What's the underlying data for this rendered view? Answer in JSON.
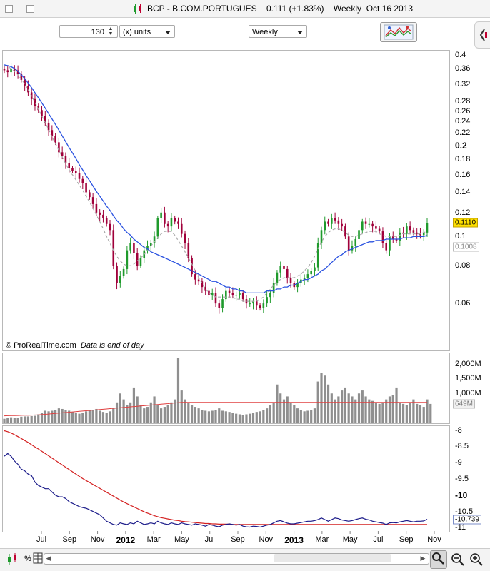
{
  "window": {
    "title": "BCP - B.COM.PORTUGUES",
    "price_change": "0.111 (+1.83%)",
    "period": "Weekly",
    "date": "Oct 16 2013"
  },
  "toolbar": {
    "units_value": "130",
    "units_label": "(x) units",
    "period_value": "Weekly"
  },
  "footer": {
    "source": "© ProRealTime.com",
    "note": "Data is end of day"
  },
  "icons": {
    "chart_tool": "chart-tool-icon",
    "side_toggle": "side-toggle-icon",
    "bottom": [
      "candlestick-icon",
      "hundred-percent-icon",
      "table-icon",
      "zoom-select-icon",
      "zoom-out-icon",
      "zoom-in-icon"
    ]
  },
  "colors": {
    "up_candle": "#1f9a2c",
    "down_candle": "#a0003a",
    "ma_fast": "#a8a8a8",
    "ma_slow": "#2a52e0",
    "volume_bar": "#8f8f8f",
    "volume_ma": "#e04040",
    "ind_line_1": "#1c1c8a",
    "ind_line_2": "#d42020",
    "price_tag": "#ffe000"
  },
  "chart_data": [
    {
      "type": "candlestick",
      "title": "BCP - B.COM.PORTUGUES",
      "period": "Weekly",
      "y_scale": "log",
      "ylim": [
        0.045,
        0.41
      ],
      "y_ticks": [
        "0.4",
        "0.36",
        "0.32",
        "0.28",
        "0.26",
        "0.24",
        "0.22",
        "0.2",
        "0.18",
        "0.16",
        "0.14",
        "0.12",
        "0.1",
        "0.08",
        "0.06"
      ],
      "y_ticks_bold": [
        "0.2"
      ],
      "last_price": "0.1110",
      "ma_value": "0.1008",
      "x_ticks": [
        "Jul",
        "Sep",
        "Nov",
        "2012",
        "Mar",
        "May",
        "Jul",
        "Sep",
        "Nov",
        "2013",
        "Mar",
        "May",
        "Jul",
        "Sep",
        "Nov"
      ],
      "x_ticks_bold": [
        "2012",
        "2013"
      ],
      "close": [
        0.355,
        0.35,
        0.36,
        0.355,
        0.345,
        0.33,
        0.315,
        0.3,
        0.285,
        0.27,
        0.262,
        0.25,
        0.238,
        0.225,
        0.215,
        0.205,
        0.19,
        0.185,
        0.175,
        0.168,
        0.165,
        0.162,
        0.155,
        0.15,
        0.14,
        0.135,
        0.128,
        0.12,
        0.118,
        0.115,
        0.11,
        0.105,
        0.08,
        0.07,
        0.074,
        0.078,
        0.09,
        0.095,
        0.088,
        0.08,
        0.085,
        0.09,
        0.093,
        0.095,
        0.1,
        0.115,
        0.12,
        0.11,
        0.108,
        0.115,
        0.112,
        0.11,
        0.102,
        0.095,
        0.085,
        0.075,
        0.072,
        0.071,
        0.068,
        0.066,
        0.064,
        0.065,
        0.06,
        0.058,
        0.062,
        0.066,
        0.065,
        0.064,
        0.064,
        0.065,
        0.062,
        0.06,
        0.06,
        0.061,
        0.059,
        0.058,
        0.06,
        0.063,
        0.065,
        0.07,
        0.076,
        0.08,
        0.078,
        0.073,
        0.07,
        0.068,
        0.07,
        0.072,
        0.073,
        0.075,
        0.077,
        0.079,
        0.095,
        0.105,
        0.112,
        0.11,
        0.115,
        0.113,
        0.11,
        0.108,
        0.1,
        0.09,
        0.093,
        0.098,
        0.105,
        0.112,
        0.11,
        0.11,
        0.108,
        0.106,
        0.104,
        0.095,
        0.09,
        0.1,
        0.098,
        0.097,
        0.103,
        0.102,
        0.108,
        0.105,
        0.103,
        0.102,
        0.101,
        0.103,
        0.111
      ],
      "series": [
        {
          "name": "",
          "values": [
            0.37,
            0.368,
            0.365,
            0.36,
            0.352,
            0.343,
            0.333,
            0.322,
            0.311,
            0.299,
            0.288,
            0.277,
            0.266,
            0.255,
            0.245,
            0.235,
            0.225,
            0.215,
            0.206,
            0.197,
            0.189,
            0.181,
            0.173,
            0.166,
            0.159,
            0.153,
            0.147,
            0.141,
            0.136,
            0.131,
            0.126,
            0.122,
            0.117,
            0.113,
            0.11,
            0.106,
            0.103,
            0.101,
            0.098,
            0.096,
            0.094,
            0.092,
            0.091,
            0.089,
            0.088,
            0.087,
            0.086,
            0.085,
            0.084,
            0.083,
            0.082,
            0.081,
            0.08,
            0.079,
            0.078,
            0.077,
            0.076,
            0.075,
            0.074,
            0.073,
            0.072,
            0.071,
            0.071,
            0.07,
            0.069,
            0.068,
            0.068,
            0.067,
            0.067,
            0.066,
            0.066,
            0.065,
            0.065,
            0.065,
            0.065,
            0.065,
            0.065,
            0.066,
            0.066,
            0.066,
            0.067,
            0.067,
            0.068,
            0.068,
            0.069,
            0.069,
            0.07,
            0.071,
            0.072,
            0.072,
            0.073,
            0.074,
            0.075,
            0.077,
            0.078,
            0.08,
            0.082,
            0.084,
            0.086,
            0.087,
            0.089,
            0.09,
            0.091,
            0.092,
            0.093,
            0.094,
            0.095,
            0.096,
            0.096,
            0.097,
            0.097,
            0.097,
            0.098,
            0.098,
            0.098,
            0.098,
            0.098,
            0.099,
            0.099,
            0.099,
            0.1,
            0.1,
            0.1,
            0.1,
            0.1008
          ]
        },
        {
          "name": "",
          "values": [
            0.37,
            0.365,
            0.36,
            0.352,
            0.343,
            0.332,
            0.32,
            0.306,
            0.292,
            0.278,
            0.264,
            0.251,
            0.238,
            0.226,
            0.214,
            0.203,
            0.193,
            0.183,
            0.174,
            0.166,
            0.16,
            0.154,
            0.148,
            0.142,
            0.136,
            0.13,
            0.124,
            0.118,
            0.112,
            0.106,
            0.1,
            0.095,
            0.09,
            0.086,
            0.083,
            0.081,
            0.08,
            0.08,
            0.081,
            0.083,
            0.085,
            0.087,
            0.09,
            0.093,
            0.096,
            0.099,
            0.102,
            0.104,
            0.104,
            0.104,
            0.101,
            0.097,
            0.093,
            0.089,
            0.085,
            0.081,
            0.077,
            0.073,
            0.07,
            0.067,
            0.065,
            0.064,
            0.063,
            0.063,
            0.063,
            0.063,
            0.063,
            0.063,
            0.062,
            0.062,
            0.061,
            0.061,
            0.061,
            0.061,
            0.061,
            0.062,
            0.063,
            0.065,
            0.067,
            0.069,
            0.071,
            0.072,
            0.073,
            0.073,
            0.073,
            0.073,
            0.074,
            0.075,
            0.077,
            0.079,
            0.082,
            0.086,
            0.091,
            0.096,
            0.1,
            0.103,
            0.105,
            0.106,
            0.106,
            0.105,
            0.103,
            0.101,
            0.1,
            0.1,
            0.101,
            0.102,
            0.103,
            0.104,
            0.104,
            0.104,
            0.102,
            0.101,
            0.1,
            0.1,
            0.1,
            0.1,
            0.101,
            0.102,
            0.102,
            0.102,
            0.102,
            0.102,
            0.102,
            0.103,
            0.104
          ]
        }
      ]
    },
    {
      "type": "bar",
      "title": "Volume",
      "y_ticks": [
        "2,000M",
        "1,500M",
        "1,000M"
      ],
      "ylim": [
        0,
        2300
      ],
      "last_value": "649M",
      "values": [
        150,
        170,
        200,
        180,
        180,
        220,
        230,
        230,
        240,
        250,
        300,
        350,
        420,
        400,
        420,
        450,
        500,
        480,
        450,
        420,
        380,
        350,
        320,
        350,
        400,
        420,
        450,
        480,
        420,
        380,
        350,
        400,
        500,
        700,
        1000,
        800,
        600,
        700,
        1200,
        900,
        600,
        500,
        550,
        700,
        900,
        600,
        500,
        550,
        600,
        700,
        800,
        2200,
        1100,
        800,
        700,
        600,
        550,
        500,
        450,
        420,
        400,
        420,
        450,
        500,
        420,
        400,
        380,
        350,
        320,
        300,
        280,
        300,
        320,
        350,
        380,
        400,
        450,
        500,
        600,
        700,
        1300,
        1000,
        800,
        900,
        700,
        600,
        500,
        450,
        400,
        420,
        450,
        500,
        1400,
        1700,
        1600,
        1300,
        1000,
        800,
        900,
        1100,
        1200,
        1000,
        900,
        800,
        1000,
        1100,
        900,
        800,
        750,
        700,
        650,
        700,
        800,
        900,
        950,
        1200,
        700,
        650,
        600,
        700,
        800,
        650,
        600,
        550,
        800,
        649
      ],
      "series": [
        {
          "name": "",
          "values": [
            250,
            253,
            256,
            259,
            262,
            265,
            268,
            271,
            274,
            277,
            280,
            290,
            300,
            310,
            320,
            330,
            340,
            350,
            360,
            370,
            380,
            390,
            400,
            410,
            420,
            430,
            440,
            450,
            460,
            470,
            480,
            490,
            500,
            510,
            520,
            530,
            540,
            550,
            560,
            570,
            580,
            590,
            600,
            610,
            620,
            630,
            640,
            650,
            660,
            670,
            680,
            690,
            700,
            700,
            700,
            700,
            700,
            700,
            700,
            700,
            700,
            700,
            700,
            700,
            700,
            700,
            700,
            700,
            700,
            700,
            700,
            700,
            700,
            700,
            700,
            700,
            700,
            700,
            700,
            700,
            700,
            700,
            700,
            700,
            700,
            700,
            700,
            700,
            700,
            700,
            700,
            700,
            700,
            700,
            700,
            700,
            700,
            700,
            700,
            700,
            700,
            700,
            700,
            700,
            700,
            700,
            700,
            700,
            700,
            700,
            700,
            700,
            700,
            700,
            700,
            700,
            700,
            700,
            700,
            700,
            700,
            700,
            700,
            700,
            700
          ]
        }
      ]
    },
    {
      "type": "line",
      "title": "",
      "y_ticks": [
        "-8",
        "-8.5",
        "-9",
        "-9.5",
        "-10",
        "-10.5",
        "-11"
      ],
      "y_ticks_bold": [
        "-10"
      ],
      "ylim": [
        -11.1,
        -7.9
      ],
      "last_value": "-10.739",
      "series": [
        {
          "name": "",
          "values": [
            -8.8,
            -8.72,
            -8.8,
            -8.95,
            -9.05,
            -9.2,
            -9.25,
            -9.35,
            -9.4,
            -9.6,
            -9.7,
            -9.75,
            -9.8,
            -9.8,
            -9.9,
            -10.0,
            -10.05,
            -10.05,
            -10.1,
            -10.2,
            -10.25,
            -10.3,
            -10.35,
            -10.38,
            -10.4,
            -10.45,
            -10.5,
            -10.55,
            -10.6,
            -10.7,
            -10.8,
            -10.85,
            -10.9,
            -10.92,
            -10.85,
            -10.88,
            -10.9,
            -10.85,
            -10.88,
            -10.8,
            -10.85,
            -10.9,
            -10.88,
            -10.85,
            -10.88,
            -10.8,
            -10.85,
            -10.88,
            -10.9,
            -10.85,
            -10.88,
            -10.9,
            -10.85,
            -10.88,
            -10.9,
            -10.92,
            -10.88,
            -10.9,
            -10.92,
            -10.95,
            -10.9,
            -10.92,
            -10.95,
            -10.97,
            -10.92,
            -10.9,
            -10.88,
            -10.9,
            -10.92,
            -10.9,
            -10.95,
            -10.97,
            -10.98,
            -10.95,
            -10.96,
            -10.98,
            -10.95,
            -10.92,
            -10.9,
            -10.85,
            -10.8,
            -10.78,
            -10.82,
            -10.86,
            -10.88,
            -10.88,
            -10.86,
            -10.84,
            -10.82,
            -10.8,
            -10.8,
            -10.78,
            -10.75,
            -10.7,
            -10.75,
            -10.8,
            -10.75,
            -10.7,
            -10.72,
            -10.76,
            -10.78,
            -10.8,
            -10.78,
            -10.75,
            -10.72,
            -10.7,
            -10.74,
            -10.76,
            -10.8,
            -10.82,
            -10.84,
            -10.86,
            -10.9,
            -10.85,
            -10.84,
            -10.85,
            -10.82,
            -10.8,
            -10.78,
            -10.8,
            -10.82,
            -10.8,
            -10.8,
            -10.79,
            -10.739
          ]
        },
        {
          "name": "",
          "values": [
            -8.02,
            -8.05,
            -8.09,
            -8.14,
            -8.2,
            -8.26,
            -8.32,
            -8.38,
            -8.45,
            -8.52,
            -8.58,
            -8.65,
            -8.72,
            -8.79,
            -8.86,
            -8.93,
            -9.0,
            -9.07,
            -9.14,
            -9.21,
            -9.28,
            -9.35,
            -9.42,
            -9.49,
            -9.55,
            -9.61,
            -9.67,
            -9.73,
            -9.79,
            -9.85,
            -9.91,
            -9.97,
            -10.03,
            -10.09,
            -10.15,
            -10.21,
            -10.26,
            -10.31,
            -10.36,
            -10.41,
            -10.46,
            -10.51,
            -10.55,
            -10.59,
            -10.63,
            -10.66,
            -10.69,
            -10.71,
            -10.73,
            -10.75,
            -10.77,
            -10.78,
            -10.8,
            -10.81,
            -10.82,
            -10.83,
            -10.84,
            -10.85,
            -10.86,
            -10.87,
            -10.87,
            -10.88,
            -10.88,
            -10.89,
            -10.89,
            -10.89,
            -10.89,
            -10.9,
            -10.9,
            -10.9,
            -10.9,
            -10.9,
            -10.9,
            -10.9,
            -10.9,
            -10.9,
            -10.9,
            -10.9,
            -10.9,
            -10.9,
            -10.9,
            -10.9,
            -10.9,
            -10.9,
            -10.9,
            -10.9,
            -10.9,
            -10.9,
            -10.9,
            -10.9,
            -10.9,
            -10.9,
            -10.9,
            -10.9,
            -10.9,
            -10.9,
            -10.9,
            -10.9,
            -10.9,
            -10.9,
            -10.9,
            -10.9,
            -10.9,
            -10.9,
            -10.9,
            -10.9,
            -10.9,
            -10.9,
            -10.9,
            -10.9,
            -10.9,
            -10.9,
            -10.9,
            -10.9,
            -10.9,
            -10.9,
            -10.9,
            -10.9,
            -10.9,
            -10.9,
            -10.9,
            -10.9,
            -10.9,
            -10.9,
            -10.9
          ]
        }
      ]
    }
  ]
}
